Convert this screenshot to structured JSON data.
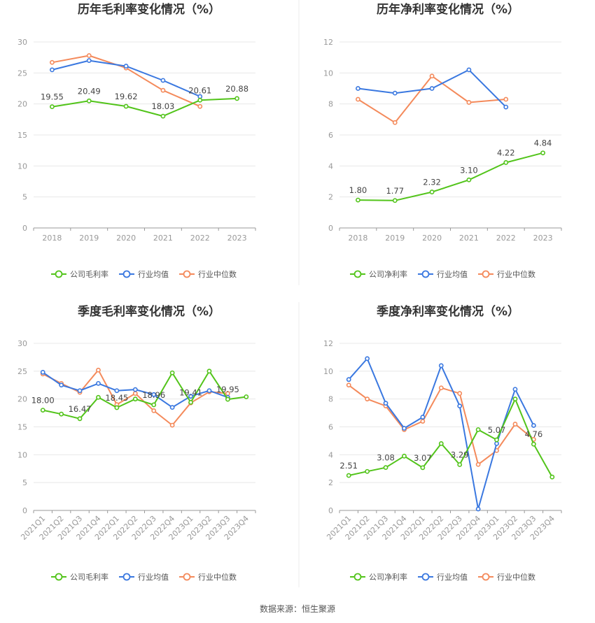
{
  "chart_data": [
    {
      "type": "line",
      "title": "历年毛利率变化情况（%）",
      "categories": [
        "2018",
        "2019",
        "2020",
        "2021",
        "2022",
        "2023"
      ],
      "ylim": [
        0,
        30
      ],
      "yticks": [
        0,
        5,
        10,
        15,
        20,
        25,
        30
      ],
      "label_series": 0,
      "series": [
        {
          "name": "公司毛利率",
          "color": "#52c41a",
          "values": [
            19.55,
            20.49,
            19.62,
            18.03,
            20.61,
            20.88
          ],
          "labels": [
            "19.55",
            "20.49",
            "19.62",
            "18.03",
            "20.61",
            "20.88"
          ]
        },
        {
          "name": "行业均值",
          "color": "#3a78e0",
          "values": [
            25.5,
            27.0,
            26.1,
            23.8,
            21.2,
            null
          ]
        },
        {
          "name": "行业中位数",
          "color": "#f48a5b",
          "values": [
            26.7,
            27.8,
            25.8,
            22.2,
            19.6,
            null
          ]
        }
      ]
    },
    {
      "type": "line",
      "title": "历年净利率变化情况（%）",
      "categories": [
        "2018",
        "2019",
        "2020",
        "2021",
        "2022",
        "2023"
      ],
      "ylim": [
        0,
        12
      ],
      "yticks": [
        0,
        2,
        4,
        6,
        8,
        10,
        12
      ],
      "label_series": 0,
      "series": [
        {
          "name": "公司净利率",
          "color": "#52c41a",
          "values": [
            1.8,
            1.77,
            2.32,
            3.1,
            4.22,
            4.84
          ],
          "labels": [
            "1.80",
            "1.77",
            "2.32",
            "3.10",
            "4.22",
            "4.84"
          ]
        },
        {
          "name": "行业均值",
          "color": "#3a78e0",
          "values": [
            9.0,
            8.7,
            9.0,
            10.2,
            7.8,
            null
          ]
        },
        {
          "name": "行业中位数",
          "color": "#f48a5b",
          "values": [
            8.3,
            6.8,
            9.8,
            8.1,
            8.3,
            null
          ]
        }
      ]
    },
    {
      "type": "line",
      "title": "季度毛利率变化情况（%）",
      "categories": [
        "2021Q1",
        "2021Q2",
        "2021Q3",
        "2021Q4",
        "2022Q1",
        "2022Q2",
        "2022Q3",
        "2022Q4",
        "2023Q1",
        "2023Q2",
        "2023Q3",
        "2023Q4"
      ],
      "ylim": [
        0,
        30
      ],
      "yticks": [
        0,
        5,
        10,
        15,
        20,
        25,
        30
      ],
      "label_series": 0,
      "series": [
        {
          "name": "公司毛利率",
          "color": "#52c41a",
          "values": [
            18.0,
            17.3,
            16.47,
            20.3,
            18.45,
            20.0,
            18.96,
            24.7,
            19.41,
            25.0,
            19.95,
            20.4
          ],
          "labels": [
            "18.00",
            "",
            "16.47",
            "",
            "18.45",
            "",
            "18.96",
            "",
            "19.41",
            "",
            "19.95",
            ""
          ]
        },
        {
          "name": "行业均值",
          "color": "#3a78e0",
          "values": [
            24.8,
            22.5,
            21.5,
            22.8,
            21.5,
            21.7,
            20.8,
            18.5,
            20.5,
            21.5,
            20.3,
            null
          ]
        },
        {
          "name": "行业中位数",
          "color": "#f48a5b",
          "values": [
            24.5,
            22.8,
            21.2,
            25.2,
            19.0,
            21.0,
            17.9,
            15.3,
            19.3,
            21.3,
            21.0,
            null
          ]
        }
      ]
    },
    {
      "type": "line",
      "title": "季度净利率变化情况（%）",
      "categories": [
        "2021Q1",
        "2021Q2",
        "2021Q3",
        "2021Q4",
        "2022Q1",
        "2022Q2",
        "2022Q3",
        "2022Q4",
        "2023Q1",
        "2023Q2",
        "2023Q3",
        "2023Q4"
      ],
      "ylim": [
        0,
        12
      ],
      "yticks": [
        0,
        2,
        4,
        6,
        8,
        10,
        12
      ],
      "label_series": 0,
      "series": [
        {
          "name": "公司净利率",
          "color": "#52c41a",
          "values": [
            2.51,
            2.8,
            3.08,
            3.9,
            3.07,
            4.8,
            3.29,
            5.8,
            5.07,
            8.0,
            4.76,
            2.4
          ],
          "labels": [
            "2.51",
            "",
            "3.08",
            "",
            "3.07",
            "",
            "3.29",
            "",
            "5.07",
            "",
            "4.76",
            ""
          ]
        },
        {
          "name": "行业均值",
          "color": "#3a78e0",
          "values": [
            9.4,
            10.9,
            7.7,
            5.9,
            6.7,
            10.4,
            7.5,
            0.1,
            4.8,
            8.7,
            6.1,
            null
          ]
        },
        {
          "name": "行业中位数",
          "color": "#f48a5b",
          "values": [
            9.0,
            8.0,
            7.5,
            5.8,
            6.4,
            8.8,
            8.4,
            3.3,
            4.3,
            6.2,
            5.1,
            null
          ]
        }
      ]
    }
  ],
  "source_text": "数据来源：恒生聚源"
}
